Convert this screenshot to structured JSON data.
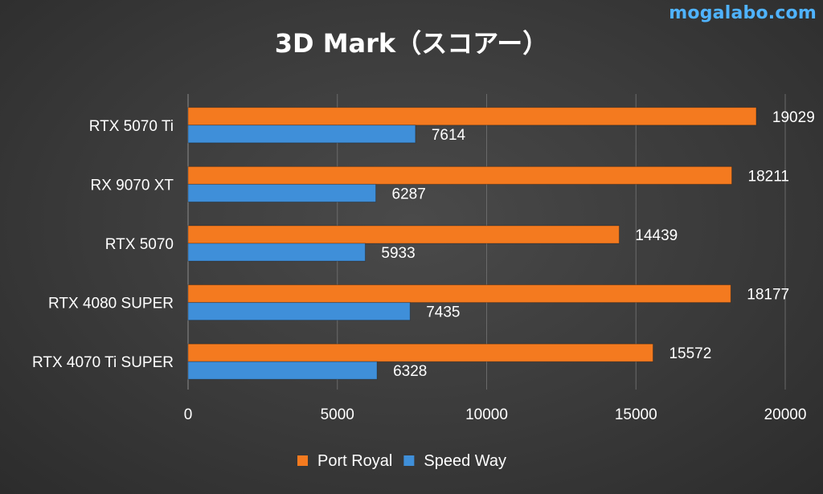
{
  "watermark": "mogalabo.com",
  "chart_data": {
    "type": "bar",
    "orientation": "horizontal",
    "title": "3D Mark（スコアー）",
    "categories": [
      "RTX 5070 Ti",
      "RX 9070 XT",
      "RTX 5070",
      "RTX 4080 SUPER",
      "RTX 4070 Ti SUPER"
    ],
    "series": [
      {
        "name": "Port Royal",
        "color": "#f47a1f",
        "values": [
          19029,
          18211,
          14439,
          18177,
          15572
        ]
      },
      {
        "name": "Speed Way",
        "color": "#3f8fd9",
        "values": [
          7614,
          6287,
          5933,
          7435,
          6328
        ]
      }
    ],
    "xlim": [
      0,
      20000
    ],
    "xticks": [
      "0",
      "5000",
      "10000",
      "15000",
      "20000"
    ],
    "grid": true,
    "legend": "bottom",
    "data_labels": true
  }
}
